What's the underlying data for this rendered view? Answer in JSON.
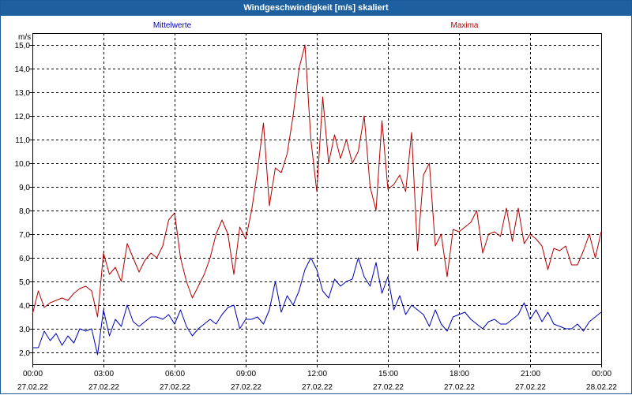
{
  "window": {
    "title": "Windgeschwindigkeit [m/s] skaliert"
  },
  "chart_data": {
    "type": "line",
    "title": "Windgeschwindigkeit [m/s] skaliert",
    "ylabel": "m/s",
    "xlabel": "",
    "ylim": [
      1.5,
      15.5
    ],
    "yticks": [
      2.0,
      3.0,
      4.0,
      5.0,
      6.0,
      7.0,
      8.0,
      9.0,
      10.0,
      11.0,
      12.0,
      13.0,
      14.0,
      15.0
    ],
    "ytick_labels": [
      "2,0",
      "3,0",
      "4,0",
      "5,0",
      "6,0",
      "7,0",
      "8,0",
      "9,0",
      "10,0",
      "11,0",
      "12,0",
      "13,0",
      "14,0",
      "15,0"
    ],
    "xlim": [
      0,
      24
    ],
    "xticks": [
      {
        "time": "00:00",
        "date": "27.02.22"
      },
      {
        "time": "03:00",
        "date": "27.02.22"
      },
      {
        "time": "06:00",
        "date": "27.02.22"
      },
      {
        "time": "09:00",
        "date": "27.02.22"
      },
      {
        "time": "12:00",
        "date": "27.02.22"
      },
      {
        "time": "15:00",
        "date": "27.02.22"
      },
      {
        "time": "18:00",
        "date": "27.02.22"
      },
      {
        "time": "21:00",
        "date": "27.02.22"
      },
      {
        "time": "00:00",
        "date": "28.02.22"
      }
    ],
    "grid": true,
    "series": [
      {
        "name": "Mittelwerte",
        "color": "#0000b4",
        "x": [
          0.0,
          0.25,
          0.5,
          0.75,
          1.0,
          1.25,
          1.5,
          1.75,
          2.0,
          2.25,
          2.5,
          2.75,
          3.0,
          3.25,
          3.5,
          3.75,
          4.0,
          4.25,
          4.5,
          4.75,
          5.0,
          5.25,
          5.5,
          5.75,
          6.0,
          6.25,
          6.5,
          6.75,
          7.0,
          7.25,
          7.5,
          7.75,
          8.0,
          8.25,
          8.5,
          8.75,
          9.0,
          9.25,
          9.5,
          9.75,
          10.0,
          10.25,
          10.5,
          10.75,
          11.0,
          11.25,
          11.5,
          11.75,
          12.0,
          12.25,
          12.5,
          12.75,
          13.0,
          13.25,
          13.5,
          13.75,
          14.0,
          14.25,
          14.5,
          14.75,
          15.0,
          15.25,
          15.5,
          15.75,
          16.0,
          16.25,
          16.5,
          16.75,
          17.0,
          17.25,
          17.5,
          17.75,
          18.0,
          18.25,
          18.5,
          18.75,
          19.0,
          19.25,
          19.5,
          19.75,
          20.0,
          20.25,
          20.5,
          20.75,
          21.0,
          21.25,
          21.5,
          21.75,
          22.0,
          22.25,
          22.5,
          22.75,
          23.0,
          23.25,
          23.5,
          23.75,
          24.0
        ],
        "values": [
          2.2,
          2.2,
          2.9,
          2.5,
          2.8,
          2.3,
          2.7,
          2.4,
          3.0,
          2.9,
          3.0,
          1.9,
          3.8,
          2.7,
          3.4,
          3.1,
          4.0,
          3.3,
          3.1,
          3.3,
          3.5,
          3.5,
          3.4,
          3.6,
          3.2,
          3.8,
          3.1,
          2.7,
          3.0,
          3.2,
          3.4,
          3.2,
          3.6,
          3.9,
          4.0,
          3.0,
          3.4,
          3.4,
          3.5,
          3.2,
          3.8,
          5.0,
          3.7,
          4.4,
          4.0,
          4.6,
          5.5,
          6.0,
          5.5,
          4.6,
          4.3,
          5.1,
          4.8,
          5.0,
          5.1,
          6.0,
          5.2,
          4.8,
          5.8,
          4.5,
          5.2,
          3.8,
          4.4,
          3.6,
          4.0,
          3.8,
          3.6,
          3.1,
          3.8,
          3.2,
          2.9,
          3.5,
          3.6,
          3.7,
          3.4,
          3.2,
          3.0,
          3.3,
          3.4,
          3.2,
          3.2,
          3.4,
          3.6,
          4.1,
          3.4,
          3.8,
          3.3,
          3.7,
          3.2,
          3.1,
          3.0,
          3.0,
          3.2,
          2.9,
          3.3,
          3.5,
          3.7
        ]
      },
      {
        "name": "Maxima",
        "color": "#b40000",
        "x": [
          0.0,
          0.25,
          0.5,
          0.75,
          1.0,
          1.25,
          1.5,
          1.75,
          2.0,
          2.25,
          2.5,
          2.75,
          3.0,
          3.25,
          3.5,
          3.75,
          4.0,
          4.25,
          4.5,
          4.75,
          5.0,
          5.25,
          5.5,
          5.75,
          6.0,
          6.25,
          6.5,
          6.75,
          7.0,
          7.25,
          7.5,
          7.75,
          8.0,
          8.25,
          8.5,
          8.75,
          9.0,
          9.25,
          9.5,
          9.75,
          10.0,
          10.25,
          10.5,
          10.75,
          11.0,
          11.25,
          11.5,
          11.75,
          12.0,
          12.25,
          12.5,
          12.75,
          13.0,
          13.25,
          13.5,
          13.75,
          14.0,
          14.25,
          14.5,
          14.75,
          15.0,
          15.25,
          15.5,
          15.75,
          16.0,
          16.25,
          16.5,
          16.75,
          17.0,
          17.25,
          17.5,
          17.75,
          18.0,
          18.25,
          18.5,
          18.75,
          19.0,
          19.25,
          19.5,
          19.75,
          20.0,
          20.25,
          20.5,
          20.75,
          21.0,
          21.25,
          21.5,
          21.75,
          22.0,
          22.25,
          22.5,
          22.75,
          23.0,
          23.25,
          23.5,
          23.75,
          24.0
        ],
        "values": [
          3.6,
          4.6,
          3.9,
          4.1,
          4.2,
          4.3,
          4.2,
          4.5,
          4.7,
          4.8,
          4.6,
          3.5,
          6.2,
          5.3,
          5.6,
          5.0,
          6.6,
          6.0,
          5.4,
          5.9,
          6.2,
          6.0,
          6.5,
          7.6,
          7.9,
          6.0,
          5.0,
          4.3,
          4.8,
          5.3,
          6.0,
          7.0,
          7.6,
          7.0,
          5.3,
          7.3,
          6.8,
          8.0,
          9.7,
          11.7,
          8.2,
          9.8,
          9.6,
          10.4,
          12.0,
          14.0,
          15.0,
          11.0,
          8.8,
          12.8,
          10.0,
          11.2,
          10.2,
          11.0,
          10.0,
          10.5,
          12.0,
          9.0,
          8.0,
          11.8,
          8.9,
          9.1,
          9.5,
          8.8,
          11.3,
          6.3,
          9.5,
          10.0,
          6.5,
          7.0,
          5.2,
          7.2,
          7.1,
          7.3,
          7.5,
          8.0,
          6.2,
          7.0,
          7.1,
          6.9,
          8.1,
          6.7,
          8.1,
          6.6,
          7.0,
          6.8,
          6.5,
          5.5,
          6.4,
          6.3,
          6.5,
          5.7,
          5.7,
          6.3,
          7.0,
          6.0,
          7.1
        ]
      }
    ]
  }
}
